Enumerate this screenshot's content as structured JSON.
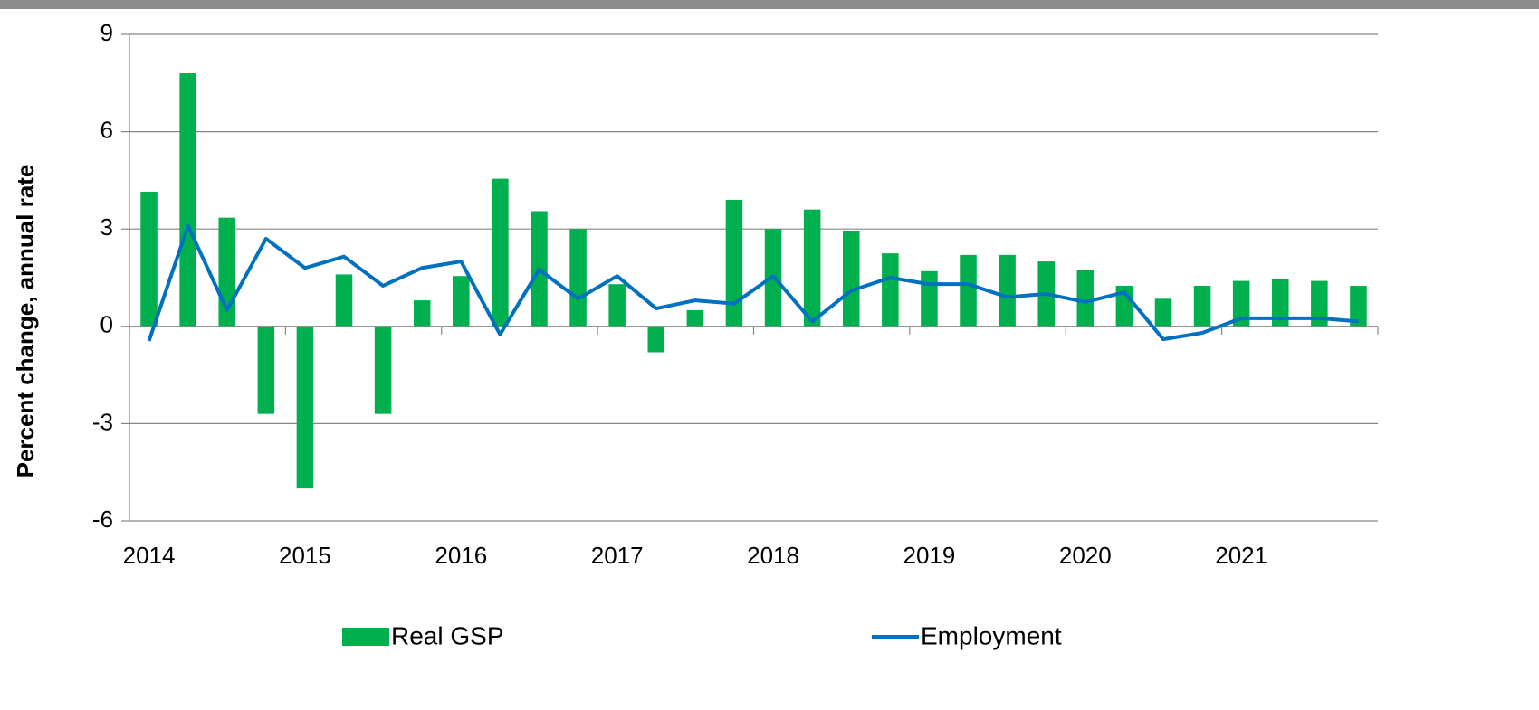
{
  "chart_data": {
    "type": "bar+line",
    "y_axis_label": "Percent change, annual rate",
    "categories": [
      "2014",
      null,
      null,
      null,
      "2015",
      null,
      null,
      null,
      "2016",
      null,
      null,
      null,
      "2017",
      null,
      null,
      null,
      "2018",
      null,
      null,
      null,
      "2019",
      null,
      null,
      null,
      "2020",
      null,
      null,
      null,
      "2021",
      null,
      null,
      null
    ],
    "series": [
      {
        "name": "Real GSP",
        "type": "bar",
        "color": "#00b04f",
        "values": [
          4.15,
          7.8,
          3.35,
          -2.7,
          -5.0,
          1.6,
          -2.7,
          0.8,
          1.55,
          4.55,
          3.55,
          3.0,
          1.3,
          -0.8,
          0.5,
          3.9,
          3.0,
          3.6,
          2.95,
          2.25,
          1.7,
          2.2,
          2.2,
          2.0,
          1.75,
          1.25,
          0.85,
          1.25,
          1.4,
          1.45,
          1.4,
          1.25
        ]
      },
      {
        "name": "Employment",
        "type": "line",
        "color": "#0070c0",
        "values": [
          -0.45,
          3.1,
          0.5,
          2.7,
          1.8,
          2.15,
          1.25,
          1.8,
          2.0,
          -0.25,
          1.75,
          0.85,
          1.55,
          0.55,
          0.8,
          0.7,
          1.55,
          0.15,
          1.1,
          1.5,
          1.3,
          1.3,
          0.9,
          1.0,
          0.75,
          1.05,
          -0.4,
          -0.2,
          0.25,
          0.25,
          0.25,
          0.15
        ]
      }
    ],
    "ylim": [
      -6,
      9
    ],
    "yticks": [
      9,
      6,
      3,
      0,
      -3,
      -6
    ],
    "grid": true,
    "legend": "bottom"
  }
}
